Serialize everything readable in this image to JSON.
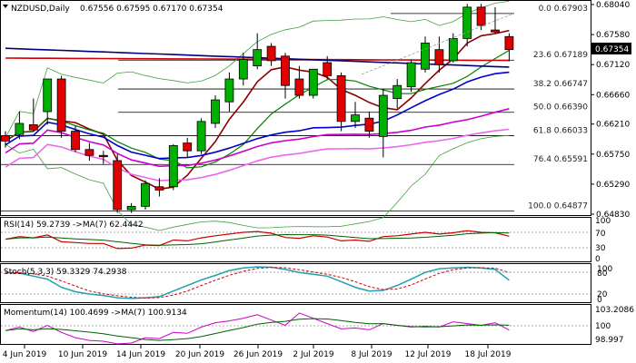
{
  "header": {
    "symbol": "NZDUSD,Daily",
    "ohlc": "0.67556 0.67595 0.67170 0.67354"
  },
  "price_axis": {
    "ticks": [
      "0.68040",
      "0.67580",
      "0.67120",
      "0.66660",
      "0.66210",
      "0.65750",
      "0.65290",
      "0.64830"
    ],
    "current_price": "0.67354"
  },
  "fibonacci": [
    {
      "label": "0.0 0.67903",
      "price": 0.67903
    },
    {
      "label": "23.6 0.67189",
      "price": 0.67189
    },
    {
      "label": "38.2 0.66747",
      "price": 0.66747
    },
    {
      "label": "50.0 0.66390",
      "price": 0.6639
    },
    {
      "label": "61.8 0.66033",
      "price": 0.66033
    },
    {
      "label": "76.4 0.65591",
      "price": 0.65591
    },
    {
      "label": "100.0 0.64877",
      "price": 0.64877
    }
  ],
  "x_axis": {
    "labels": [
      "4 Jun 2019",
      "10 Jun 2019",
      "14 Jun 2019",
      "20 Jun 2019",
      "26 Jun 2019",
      "2 Jul 2019",
      "8 Jul 2019",
      "12 Jul 2019",
      "18 Jul 2019"
    ]
  },
  "rsi": {
    "label": "RSI(14) 59.2739 ->MA(7) 62.4442",
    "ticks": [
      "100",
      "70",
      "30",
      "0"
    ]
  },
  "stoch": {
    "label": "Stoch(5,3,3) 59.3329 74.2938",
    "ticks": [
      "100",
      "80",
      "20",
      "0"
    ]
  },
  "momentum": {
    "label": "Momentum(14) 100.4699 ->MA(7) 100.9134",
    "ticks": [
      "103.2086",
      "100",
      "98.997"
    ]
  },
  "colors": {
    "bull": "#00b000",
    "bear": "#e00000",
    "ma_fast": "#8b0000",
    "ma_green": "#008000",
    "ma_blue": "#0000cc",
    "ma_red": "#d00000",
    "ma_navy": "#000080",
    "ma_magenta": "#cc00cc",
    "ma_pink": "#ee66ee",
    "bollinger": "#40a040",
    "rsi": "#cc0000",
    "stoch_main": "#20a0b0",
    "stoch_signal": "#cc0000",
    "mom": "#cc00cc",
    "mom_ma": "#006000"
  },
  "chart_data": {
    "type": "candlestick",
    "candles": [
      {
        "o": 0.6603,
        "h": 0.661,
        "l": 0.6585,
        "c": 0.6595
      },
      {
        "o": 0.6605,
        "h": 0.664,
        "l": 0.6598,
        "c": 0.6622
      },
      {
        "o": 0.662,
        "h": 0.666,
        "l": 0.661,
        "c": 0.6612
      },
      {
        "o": 0.664,
        "h": 0.669,
        "l": 0.662,
        "c": 0.669
      },
      {
        "o": 0.669,
        "h": 0.6695,
        "l": 0.66,
        "c": 0.661
      },
      {
        "o": 0.661,
        "h": 0.6618,
        "l": 0.6578,
        "c": 0.6582
      },
      {
        "o": 0.6582,
        "h": 0.6592,
        "l": 0.6565,
        "c": 0.6573
      },
      {
        "o": 0.6573,
        "h": 0.658,
        "l": 0.656,
        "c": 0.6572
      },
      {
        "o": 0.6565,
        "h": 0.6575,
        "l": 0.6485,
        "c": 0.649
      },
      {
        "o": 0.649,
        "h": 0.65,
        "l": 0.6485,
        "c": 0.6495
      },
      {
        "o": 0.6495,
        "h": 0.6535,
        "l": 0.649,
        "c": 0.653
      },
      {
        "o": 0.6525,
        "h": 0.6538,
        "l": 0.651,
        "c": 0.652
      },
      {
        "o": 0.6525,
        "h": 0.659,
        "l": 0.652,
        "c": 0.6588
      },
      {
        "o": 0.6592,
        "h": 0.66,
        "l": 0.657,
        "c": 0.658
      },
      {
        "o": 0.658,
        "h": 0.663,
        "l": 0.6575,
        "c": 0.6625
      },
      {
        "o": 0.6622,
        "h": 0.6665,
        "l": 0.6615,
        "c": 0.6658
      },
      {
        "o": 0.6655,
        "h": 0.67,
        "l": 0.664,
        "c": 0.669
      },
      {
        "o": 0.669,
        "h": 0.673,
        "l": 0.668,
        "c": 0.672
      },
      {
        "o": 0.671,
        "h": 0.676,
        "l": 0.6705,
        "c": 0.6735
      },
      {
        "o": 0.674,
        "h": 0.6745,
        "l": 0.671,
        "c": 0.6718
      },
      {
        "o": 0.6725,
        "h": 0.673,
        "l": 0.666,
        "c": 0.668
      },
      {
        "o": 0.669,
        "h": 0.671,
        "l": 0.666,
        "c": 0.6665
      },
      {
        "o": 0.6665,
        "h": 0.6705,
        "l": 0.666,
        "c": 0.6705
      },
      {
        "o": 0.6715,
        "h": 0.6725,
        "l": 0.669,
        "c": 0.6695
      },
      {
        "o": 0.6695,
        "h": 0.67,
        "l": 0.661,
        "c": 0.6625
      },
      {
        "o": 0.6625,
        "h": 0.6655,
        "l": 0.6615,
        "c": 0.6635
      },
      {
        "o": 0.663,
        "h": 0.664,
        "l": 0.66,
        "c": 0.661
      },
      {
        "o": 0.6602,
        "h": 0.6675,
        "l": 0.657,
        "c": 0.6665
      },
      {
        "o": 0.666,
        "h": 0.669,
        "l": 0.6645,
        "c": 0.668
      },
      {
        "o": 0.6678,
        "h": 0.672,
        "l": 0.667,
        "c": 0.6715
      },
      {
        "o": 0.6705,
        "h": 0.6755,
        "l": 0.67,
        "c": 0.6745
      },
      {
        "o": 0.6735,
        "h": 0.6755,
        "l": 0.67,
        "c": 0.6712
      },
      {
        "o": 0.6718,
        "h": 0.676,
        "l": 0.6715,
        "c": 0.6752
      },
      {
        "o": 0.6752,
        "h": 0.6805,
        "l": 0.674,
        "c": 0.68
      },
      {
        "o": 0.68,
        "h": 0.6805,
        "l": 0.6765,
        "c": 0.6772
      },
      {
        "o": 0.6765,
        "h": 0.68,
        "l": 0.676,
        "c": 0.6762
      },
      {
        "o": 0.6755,
        "h": 0.676,
        "l": 0.6717,
        "c": 0.6735
      }
    ]
  }
}
